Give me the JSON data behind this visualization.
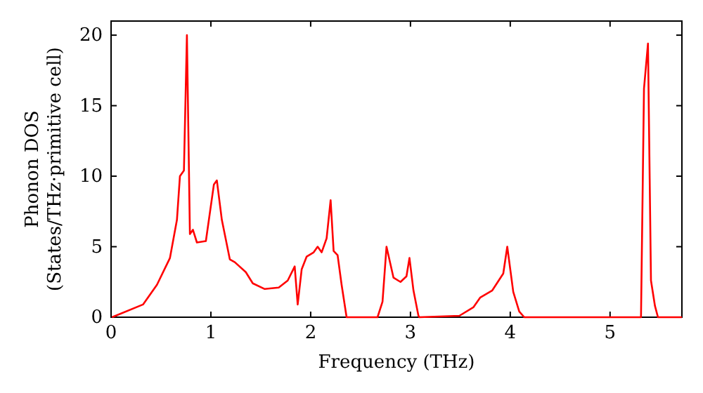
{
  "chart_data": {
    "type": "line",
    "xlabel": "Frequency (THz)",
    "ylabel": "Phonon DOS\n(States/THz·primitive cell)",
    "xlim": [
      0,
      5.72
    ],
    "ylim": [
      0,
      21
    ],
    "xticks": [
      0,
      1,
      2,
      3,
      4,
      5
    ],
    "yticks": [
      0,
      5,
      10,
      15,
      20
    ],
    "grid": false,
    "marker": "none",
    "line_style": "solid",
    "series": [
      {
        "color": "#ff0000",
        "x": [
          0.01,
          0.32,
          0.46,
          0.59,
          0.66,
          0.69,
          0.73,
          0.76,
          0.79,
          0.82,
          0.86,
          0.95,
          1.03,
          1.06,
          1.11,
          1.19,
          1.24,
          1.35,
          1.42,
          1.54,
          1.68,
          1.77,
          1.84,
          1.87,
          1.91,
          1.96,
          2.03,
          2.07,
          2.11,
          2.16,
          2.2,
          2.23,
          2.27,
          2.31,
          2.36,
          2.67,
          2.72,
          2.76,
          2.83,
          2.9,
          2.96,
          2.99,
          3.03,
          3.08,
          3.09,
          3.49,
          3.63,
          3.7,
          3.82,
          3.93,
          3.97,
          4.03,
          4.09,
          4.14,
          5.31,
          5.34,
          5.38,
          5.41,
          5.45,
          5.48,
          5.72
        ],
        "values": [
          0,
          0.9,
          2.3,
          4.2,
          6.9,
          10,
          10.4,
          20,
          5.9,
          6.2,
          5.3,
          5.4,
          9.4,
          9.7,
          6.9,
          4.1,
          3.9,
          3.2,
          2.4,
          2,
          2.1,
          2.6,
          3.6,
          0.9,
          3.4,
          4.3,
          4.6,
          5,
          4.6,
          5.6,
          8.3,
          4.7,
          4.4,
          2.3,
          0,
          0,
          1.1,
          5,
          2.8,
          2.5,
          2.9,
          4.2,
          1.9,
          0.1,
          0,
          0.1,
          0.7,
          1.4,
          1.9,
          3.1,
          5,
          1.8,
          0.4,
          0,
          0,
          16.2,
          19.4,
          2.6,
          0.8,
          0,
          0
        ]
      }
    ]
  }
}
